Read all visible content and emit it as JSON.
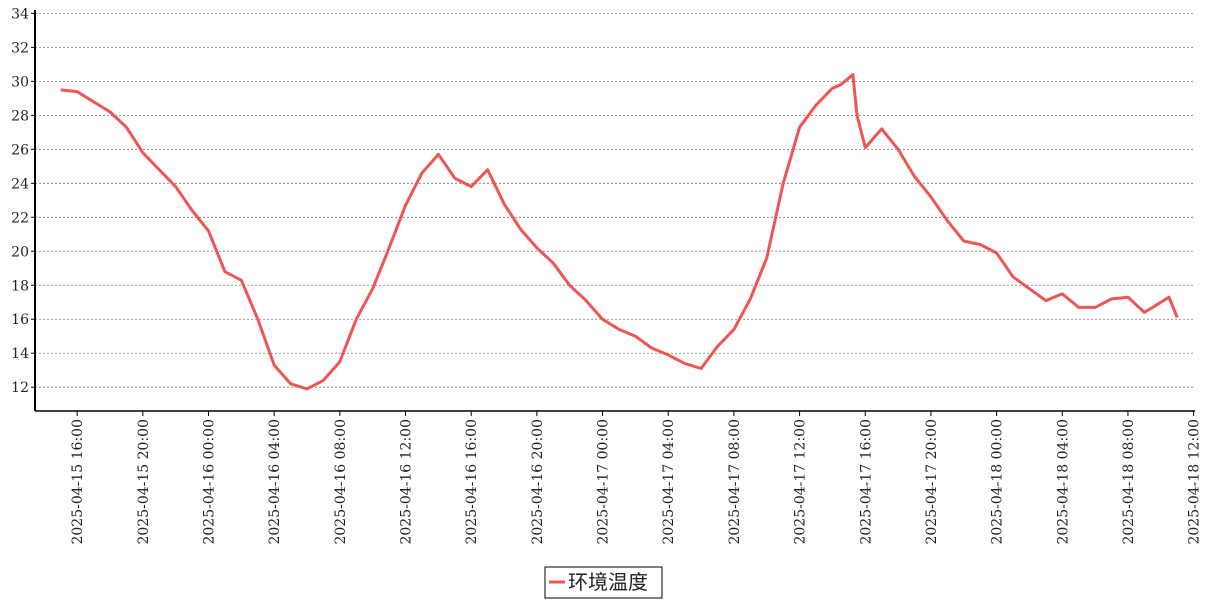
{
  "chart_data": {
    "type": "line",
    "x": [
      "2025-04-15 15:00",
      "2025-04-15 16:00",
      "2025-04-15 17:00",
      "2025-04-15 18:00",
      "2025-04-15 19:00",
      "2025-04-15 20:00",
      "2025-04-15 21:00",
      "2025-04-15 22:00",
      "2025-04-15 23:00",
      "2025-04-16 00:00",
      "2025-04-16 01:00",
      "2025-04-16 02:00",
      "2025-04-16 03:00",
      "2025-04-16 04:00",
      "2025-04-16 05:00",
      "2025-04-16 06:00",
      "2025-04-16 07:00",
      "2025-04-16 08:00",
      "2025-04-16 09:00",
      "2025-04-16 10:00",
      "2025-04-16 11:00",
      "2025-04-16 12:00",
      "2025-04-16 13:00",
      "2025-04-16 14:00",
      "2025-04-16 15:00",
      "2025-04-16 16:00",
      "2025-04-16 17:00",
      "2025-04-16 18:00",
      "2025-04-16 19:00",
      "2025-04-16 20:00",
      "2025-04-16 21:00",
      "2025-04-16 22:00",
      "2025-04-16 23:00",
      "2025-04-17 00:00",
      "2025-04-17 01:00",
      "2025-04-17 02:00",
      "2025-04-17 03:00",
      "2025-04-17 04:00",
      "2025-04-17 05:00",
      "2025-04-17 06:00",
      "2025-04-17 07:00",
      "2025-04-17 08:00",
      "2025-04-17 09:00",
      "2025-04-17 10:00",
      "2025-04-17 11:00",
      "2025-04-17 12:00",
      "2025-04-17 13:00",
      "2025-04-17 14:00",
      "2025-04-17 14:30",
      "2025-04-17 15:00",
      "2025-04-17 15:15",
      "2025-04-17 15:30",
      "2025-04-17 16:00",
      "2025-04-17 17:00",
      "2025-04-17 18:00",
      "2025-04-17 19:00",
      "2025-04-17 20:00",
      "2025-04-17 21:00",
      "2025-04-17 22:00",
      "2025-04-17 23:00",
      "2025-04-18 00:00",
      "2025-04-18 01:00",
      "2025-04-18 02:00",
      "2025-04-18 03:00",
      "2025-04-18 04:00",
      "2025-04-18 05:00",
      "2025-04-18 06:00",
      "2025-04-18 07:00",
      "2025-04-18 08:00",
      "2025-04-18 09:00",
      "2025-04-18 10:00",
      "2025-04-18 10:30",
      "2025-04-18 11:00"
    ],
    "series": [
      {
        "name": "环境温度",
        "color": "#ee5555",
        "values": [
          29.5,
          29.4,
          28.8,
          28.2,
          27.3,
          25.8,
          24.8,
          23.8,
          22.4,
          21.2,
          18.8,
          18.3,
          16.0,
          13.3,
          12.2,
          11.9,
          12.4,
          13.5,
          16.0,
          17.8,
          20.2,
          22.7,
          24.6,
          25.7,
          24.3,
          23.8,
          24.8,
          22.8,
          21.3,
          20.2,
          19.3,
          18.0,
          17.1,
          16.0,
          15.4,
          15.0,
          14.3,
          13.9,
          13.4,
          13.1,
          14.4,
          15.4,
          17.2,
          19.6,
          24.0,
          27.3,
          28.6,
          29.6,
          29.8,
          30.2,
          30.4,
          28.0,
          26.1,
          27.2,
          26.0,
          24.4,
          23.2,
          21.8,
          20.6,
          20.4,
          19.9,
          18.5,
          17.8,
          17.1,
          17.5,
          16.7,
          16.7,
          17.2,
          17.3,
          16.4,
          17.0,
          17.3,
          16.1
        ]
      }
    ],
    "xlim": [
      "2025-04-15 13:26",
      "2025-04-18 12:05"
    ],
    "xticks": [
      "2025-04-15 16:00",
      "2025-04-15 20:00",
      "2025-04-16 00:00",
      "2025-04-16 04:00",
      "2025-04-16 08:00",
      "2025-04-16 12:00",
      "2025-04-16 16:00",
      "2025-04-16 20:00",
      "2025-04-17 00:00",
      "2025-04-17 04:00",
      "2025-04-17 08:00",
      "2025-04-17 12:00",
      "2025-04-17 16:00",
      "2025-04-17 20:00",
      "2025-04-18 00:00",
      "2025-04-18 04:00",
      "2025-04-18 08:00",
      "2025-04-18 12:00"
    ],
    "ylim": [
      10.6,
      34.2
    ],
    "yticks": [
      12,
      14,
      16,
      18,
      20,
      22,
      24,
      26,
      28,
      30,
      32,
      34
    ],
    "grid": true
  }
}
